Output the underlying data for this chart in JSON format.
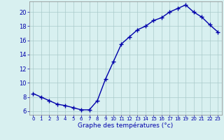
{
  "x": [
    0,
    1,
    2,
    3,
    4,
    5,
    6,
    7,
    8,
    9,
    10,
    11,
    12,
    13,
    14,
    15,
    16,
    17,
    18,
    19,
    20,
    21,
    22,
    23
  ],
  "y": [
    8.5,
    8.0,
    7.5,
    7.0,
    6.8,
    6.5,
    6.2,
    6.2,
    7.5,
    10.5,
    13.0,
    15.5,
    16.5,
    17.5,
    18.0,
    18.8,
    19.2,
    20.0,
    20.5,
    21.0,
    20.0,
    19.3,
    18.2,
    17.2
  ],
  "line_color": "#0000aa",
  "marker": "+",
  "marker_size": 4,
  "marker_lw": 1.0,
  "line_width": 1.0,
  "bg_color": "#d8f0f0",
  "grid_color": "#aacaca",
  "xlabel": "Graphe des températures (°c)",
  "xlabel_color": "#0000aa",
  "tick_color": "#0000aa",
  "label_color": "#0000aa",
  "ylim": [
    5.5,
    21.5
  ],
  "xlim": [
    -0.5,
    23.5
  ],
  "yticks": [
    6,
    8,
    10,
    12,
    14,
    16,
    18,
    20
  ],
  "xticks": [
    0,
    1,
    2,
    3,
    4,
    5,
    6,
    7,
    8,
    9,
    10,
    11,
    12,
    13,
    14,
    15,
    16,
    17,
    18,
    19,
    20,
    21,
    22,
    23
  ],
  "xlabel_fontsize": 6.5,
  "ytick_fontsize": 6.0,
  "xtick_fontsize": 5.0
}
